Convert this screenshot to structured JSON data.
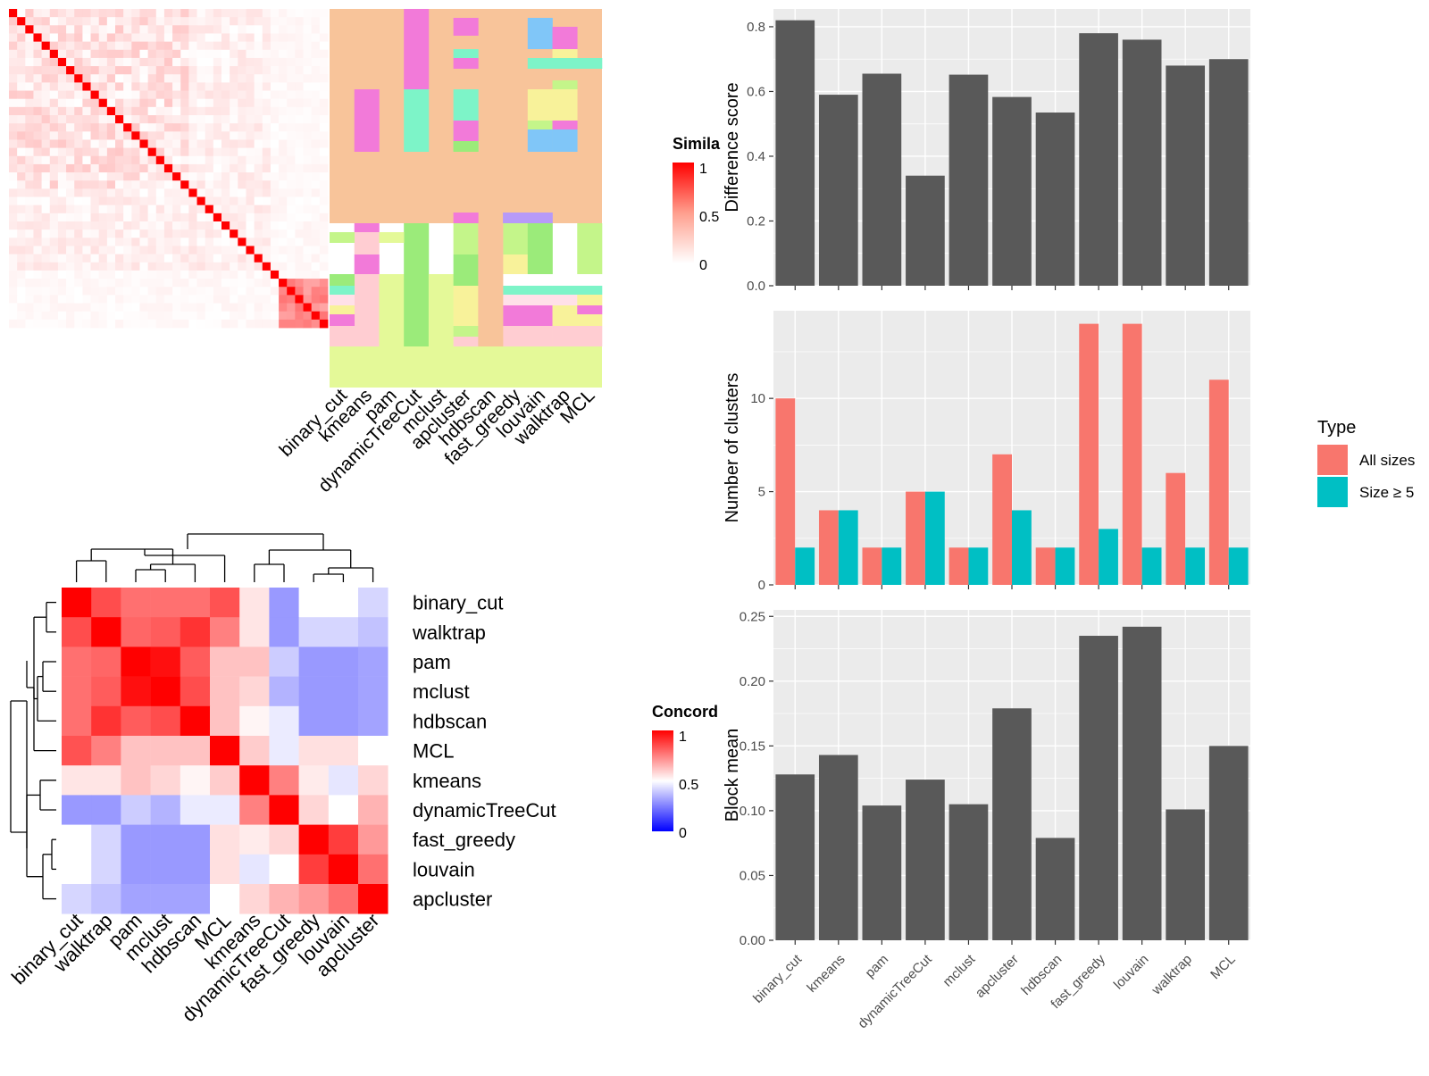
{
  "methods": [
    "binary_cut",
    "kmeans",
    "pam",
    "dynamicTreeCut",
    "mclust",
    "apcluster",
    "hdbscan",
    "fast_greedy",
    "louvain",
    "walktrap",
    "MCL"
  ],
  "colors": {
    "bar_dark": "#595959",
    "panel_bg": "#EBEBEB",
    "all_sizes": "#F8766D",
    "size5": "#00BFC4",
    "sim_high": "#FF0000",
    "conc_low": "#0000FF"
  },
  "similarity_heatmap": {
    "legend_title": "Simila",
    "legend_ticks": [
      "1",
      "0.5",
      "0"
    ]
  },
  "cluster_assignment": {
    "column_labels": [
      "binary_cut",
      "kmeans",
      "pam",
      "dynamicTreeCut",
      "mclust",
      "apcluster",
      "hdbscan",
      "fast_greedy",
      "louvain",
      "walktrap",
      "MCL"
    ]
  },
  "concordance_heatmap": {
    "legend_title": "Concord",
    "legend_ticks": [
      "1",
      "0.5",
      "0"
    ],
    "row_labels": [
      "binary_cut",
      "walktrap",
      "pam",
      "mclust",
      "hdbscan",
      "MCL",
      "kmeans",
      "dynamicTreeCut",
      "fast_greedy",
      "louvain",
      "apcluster"
    ],
    "col_labels": [
      "binary_cut",
      "walktrap",
      "pam",
      "mclust",
      "hdbscan",
      "MCL",
      "kmeans",
      "dynamicTreeCut",
      "fast_greedy",
      "louvain",
      "apcluster"
    ]
  },
  "chart_data": [
    {
      "type": "bar",
      "categories": [
        "binary_cut",
        "kmeans",
        "pam",
        "dynamicTreeCut",
        "mclust",
        "apcluster",
        "hdbscan",
        "fast_greedy",
        "louvain",
        "walktrap",
        "MCL"
      ],
      "values": [
        0.82,
        0.59,
        0.655,
        0.34,
        0.652,
        0.583,
        0.535,
        0.78,
        0.76,
        0.68,
        0.7
      ],
      "ylabel": "Difference score",
      "xlabel": "",
      "ylim": [
        0,
        0.855
      ],
      "yticks": [
        "0.0",
        "0.2",
        "0.4",
        "0.6",
        "0.8"
      ]
    },
    {
      "type": "bar",
      "categories": [
        "binary_cut",
        "kmeans",
        "pam",
        "dynamicTreeCut",
        "mclust",
        "apcluster",
        "hdbscan",
        "fast_greedy",
        "louvain",
        "walktrap",
        "MCL"
      ],
      "series": [
        {
          "name": "All sizes",
          "values": [
            10,
            4,
            2,
            5,
            2,
            7,
            2,
            14,
            14,
            6,
            11
          ]
        },
        {
          "name": "Size ≥ 5",
          "values": [
            2,
            4,
            2,
            5,
            2,
            4,
            2,
            3,
            2,
            2,
            2
          ]
        }
      ],
      "ylabel": "Number of clusters",
      "xlabel": "",
      "ylim": [
        0,
        14.7
      ],
      "yticks": [
        "0",
        "5",
        "10"
      ],
      "legend_title": "Type",
      "legend_position": "right"
    },
    {
      "type": "bar",
      "categories": [
        "binary_cut",
        "kmeans",
        "pam",
        "dynamicTreeCut",
        "mclust",
        "apcluster",
        "hdbscan",
        "fast_greedy",
        "louvain",
        "walktrap",
        "MCL"
      ],
      "values": [
        0.128,
        0.143,
        0.104,
        0.124,
        0.105,
        0.179,
        0.079,
        0.235,
        0.242,
        0.101,
        0.15
      ],
      "ylabel": "Block mean",
      "xlabel": "",
      "ylim": [
        0,
        0.255
      ],
      "yticks": [
        "0.00",
        "0.05",
        "0.10",
        "0.15",
        "0.20",
        "0.25"
      ]
    }
  ]
}
